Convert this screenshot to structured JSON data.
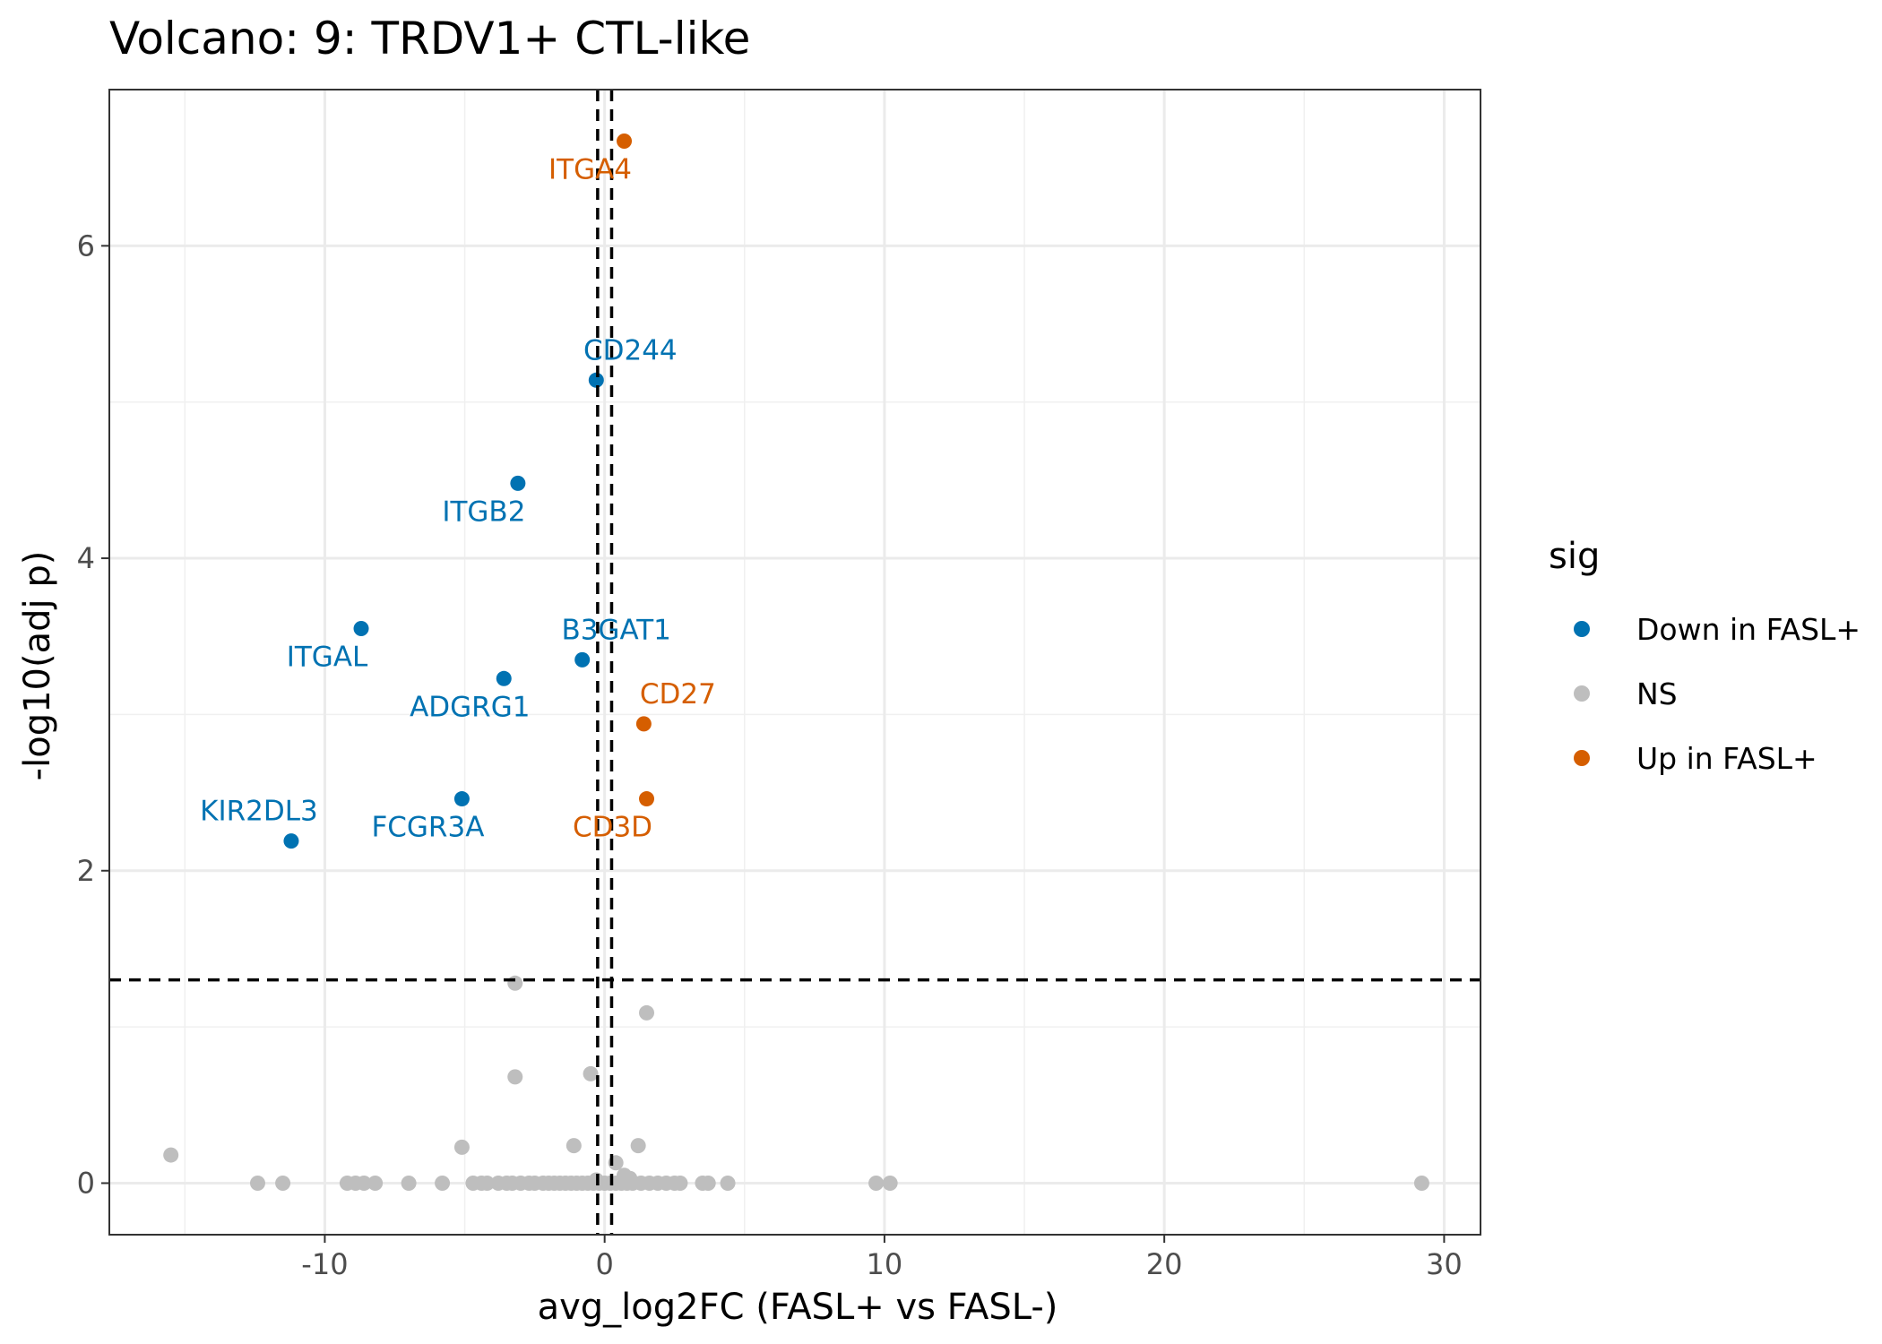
{
  "chart_data": {
    "type": "scatter",
    "title": "Volcano: 9: TRDV1+ CTL-like",
    "xlabel": "avg_log2FC (FASL+ vs FASL-)",
    "ylabel": "-log10(adj p)",
    "xlim": [
      -17.7,
      31.3
    ],
    "ylim": [
      -0.33,
      7.0
    ],
    "x_ticks": [
      -10,
      0,
      10,
      20,
      30
    ],
    "y_ticks": [
      0,
      2,
      4,
      6
    ],
    "x_tick_labels": [
      "-10",
      "0",
      "10",
      "20",
      "30"
    ],
    "y_tick_labels": [
      "0",
      "2",
      "4",
      "6"
    ],
    "grid": true,
    "thresholds": {
      "fc": [
        -0.25,
        0.25
      ],
      "neg_log10_p": 1.301
    },
    "legend": {
      "title": "sig",
      "position": "right",
      "entries": [
        {
          "label": "Down in FASL+",
          "color": "#0072B2"
        },
        {
          "label": "NS",
          "color": "#BEBEBE"
        },
        {
          "label": "Up in FASL+",
          "color": "#D55E00"
        }
      ]
    },
    "series": [
      {
        "name": "Down in FASL+",
        "color": "#0072B2",
        "points": [
          {
            "x": -0.3,
            "y": 5.14,
            "label": "CD244"
          },
          {
            "x": -3.1,
            "y": 4.48,
            "label": "ITGB2"
          },
          {
            "x": -8.7,
            "y": 3.55,
            "label": "ITGAL"
          },
          {
            "x": -0.8,
            "y": 3.35,
            "label": "B3GAT1"
          },
          {
            "x": -3.6,
            "y": 3.23,
            "label": "ADGRG1"
          },
          {
            "x": -5.1,
            "y": 2.46,
            "label": "FCGR3A"
          },
          {
            "x": -11.2,
            "y": 2.19,
            "label": "KIR2DL3"
          }
        ]
      },
      {
        "name": "Up in FASL+",
        "color": "#D55E00",
        "points": [
          {
            "x": 0.7,
            "y": 6.67,
            "label": "ITGA4"
          },
          {
            "x": 1.4,
            "y": 2.94,
            "label": "CD27"
          },
          {
            "x": 1.5,
            "y": 2.46,
            "label": "CD3D"
          }
        ]
      },
      {
        "name": "NS",
        "color": "#BEBEBE",
        "points": [
          {
            "x": -3.2,
            "y": 1.28
          },
          {
            "x": 1.5,
            "y": 1.09
          },
          {
            "x": -3.2,
            "y": 0.68
          },
          {
            "x": -0.5,
            "y": 0.7
          },
          {
            "x": -5.1,
            "y": 0.23
          },
          {
            "x": -1.1,
            "y": 0.24
          },
          {
            "x": 1.2,
            "y": 0.24
          },
          {
            "x": -15.5,
            "y": 0.18
          },
          {
            "x": 0.4,
            "y": 0.13
          },
          {
            "x": 0.7,
            "y": 0.05
          },
          {
            "x": 0.9,
            "y": 0.03
          },
          {
            "x": -0.3,
            "y": 0.02
          },
          {
            "x": -12.4,
            "y": 0
          },
          {
            "x": -11.5,
            "y": 0
          },
          {
            "x": -9.2,
            "y": 0
          },
          {
            "x": -8.9,
            "y": 0
          },
          {
            "x": -8.6,
            "y": 0
          },
          {
            "x": -8.2,
            "y": 0
          },
          {
            "x": -7.0,
            "y": 0
          },
          {
            "x": -5.8,
            "y": 0
          },
          {
            "x": -4.7,
            "y": 0
          },
          {
            "x": -4.4,
            "y": 0
          },
          {
            "x": -4.2,
            "y": 0
          },
          {
            "x": -3.8,
            "y": 0
          },
          {
            "x": -3.5,
            "y": 0
          },
          {
            "x": -3.3,
            "y": 0
          },
          {
            "x": -3.0,
            "y": 0
          },
          {
            "x": -2.7,
            "y": 0
          },
          {
            "x": -2.5,
            "y": 0
          },
          {
            "x": -2.2,
            "y": 0
          },
          {
            "x": -2.0,
            "y": 0
          },
          {
            "x": -1.8,
            "y": 0
          },
          {
            "x": -1.6,
            "y": 0
          },
          {
            "x": -1.4,
            "y": 0
          },
          {
            "x": -1.2,
            "y": 0
          },
          {
            "x": -1.0,
            "y": 0
          },
          {
            "x": -0.8,
            "y": 0
          },
          {
            "x": -0.6,
            "y": 0
          },
          {
            "x": -0.4,
            "y": 0
          },
          {
            "x": -0.2,
            "y": 0
          },
          {
            "x": 0.0,
            "y": 0
          },
          {
            "x": 0.2,
            "y": 0
          },
          {
            "x": 0.4,
            "y": 0
          },
          {
            "x": 0.6,
            "y": 0
          },
          {
            "x": 0.8,
            "y": 0
          },
          {
            "x": 1.0,
            "y": 0
          },
          {
            "x": 1.3,
            "y": 0
          },
          {
            "x": 1.6,
            "y": 0
          },
          {
            "x": 1.9,
            "y": 0
          },
          {
            "x": 2.2,
            "y": 0
          },
          {
            "x": 2.5,
            "y": 0
          },
          {
            "x": 2.7,
            "y": 0
          },
          {
            "x": 3.5,
            "y": 0
          },
          {
            "x": 3.7,
            "y": 0
          },
          {
            "x": 4.4,
            "y": 0
          },
          {
            "x": 9.7,
            "y": 0
          },
          {
            "x": 10.2,
            "y": 0
          },
          {
            "x": 29.2,
            "y": 0
          }
        ]
      }
    ]
  }
}
